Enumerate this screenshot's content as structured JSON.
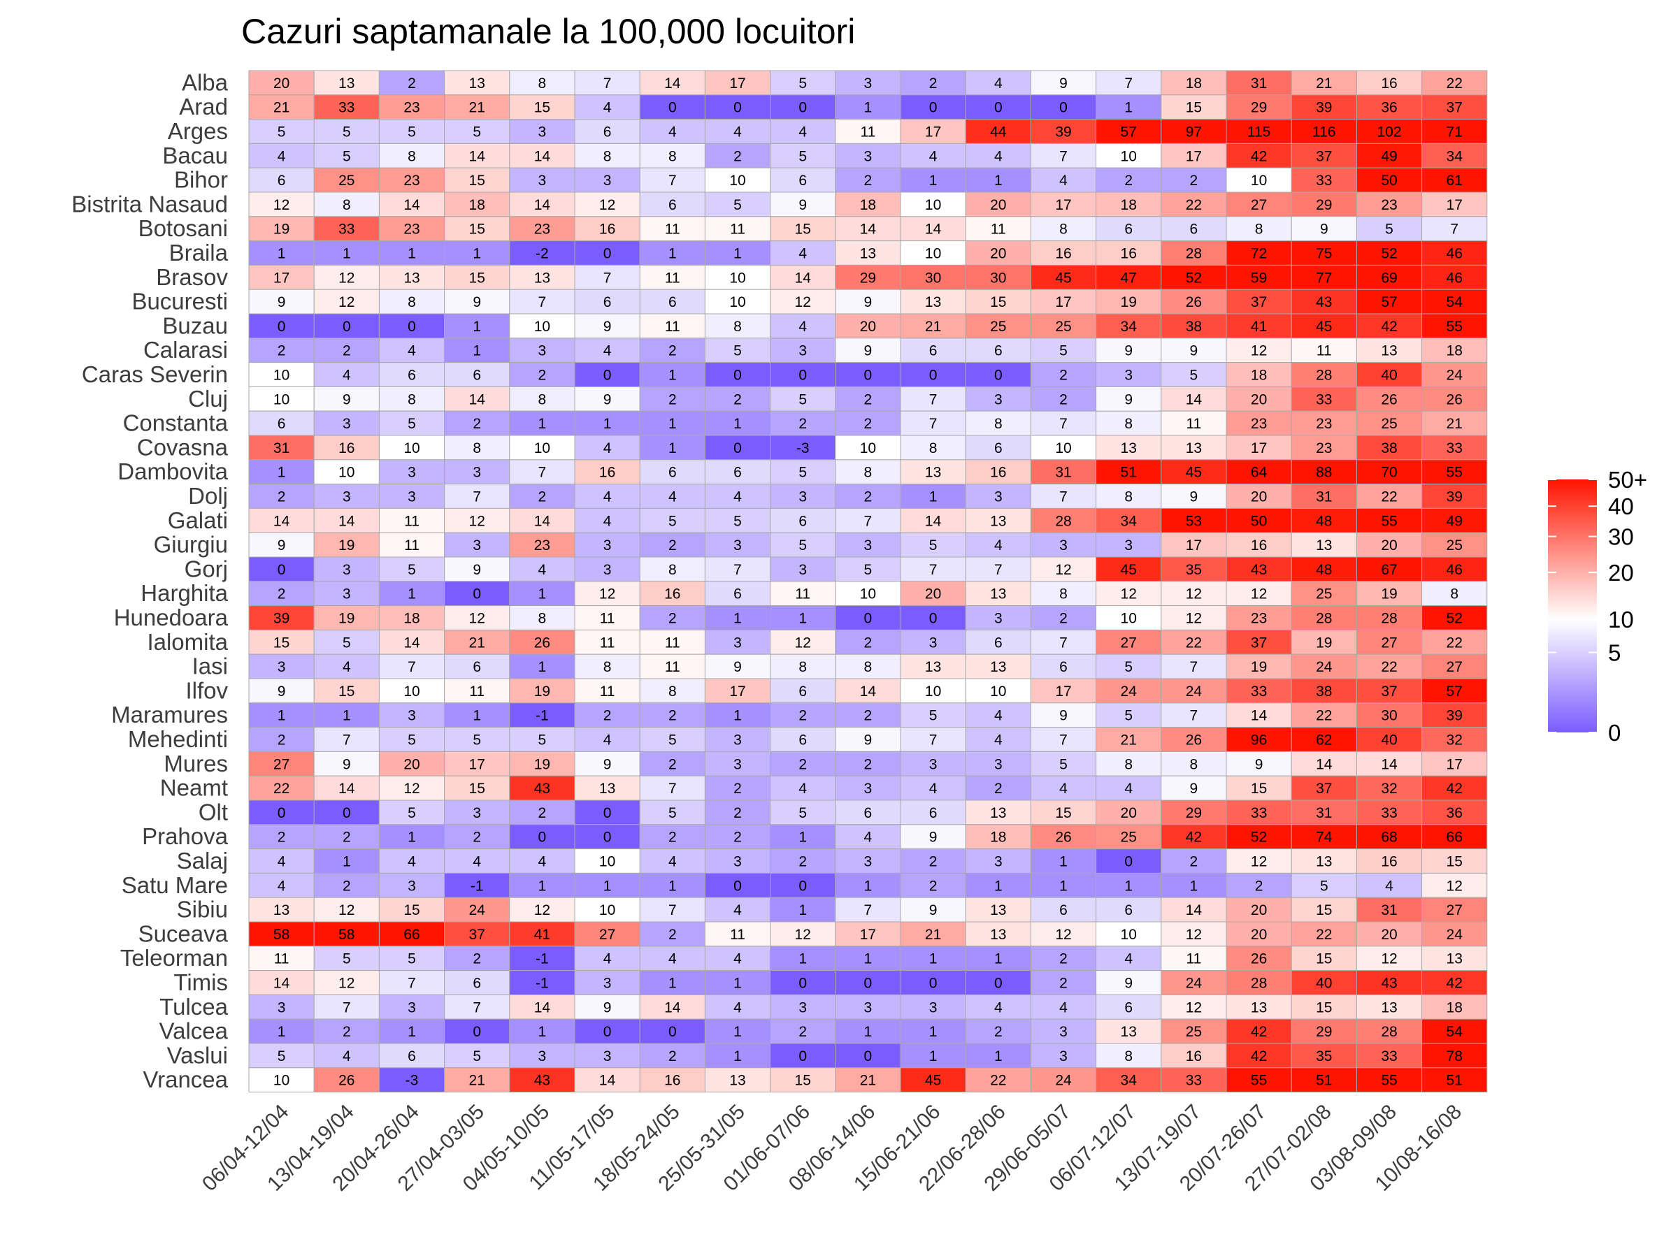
{
  "chart_data": {
    "type": "heatmap",
    "title": "Cazuri saptamanale la 100,000 locuitori",
    "xlabel": "",
    "ylabel": "",
    "columns": [
      "06/04-12/04",
      "13/04-19/04",
      "20/04-26/04",
      "27/04-03/05",
      "04/05-10/05",
      "11/05-17/05",
      "18/05-24/05",
      "25/05-31/05",
      "01/06-07/06",
      "08/06-14/06",
      "15/06-21/06",
      "22/06-28/06",
      "29/06-05/07",
      "06/07-12/07",
      "13/07-19/07",
      "20/07-26/07",
      "27/07-02/08",
      "03/08-09/08",
      "10/08-16/08"
    ],
    "rows": [
      "Alba",
      "Arad",
      "Arges",
      "Bacau",
      "Bihor",
      "Bistrita Nasaud",
      "Botosani",
      "Braila",
      "Brasov",
      "Bucuresti",
      "Buzau",
      "Calarasi",
      "Caras Severin",
      "Cluj",
      "Constanta",
      "Covasna",
      "Dambovita",
      "Dolj",
      "Galati",
      "Giurgiu",
      "Gorj",
      "Harghita",
      "Hunedoara",
      "Ialomita",
      "Iasi",
      "Ilfov",
      "Maramures",
      "Mehedinti",
      "Mures",
      "Neamt",
      "Olt",
      "Prahova",
      "Salaj",
      "Satu Mare",
      "Sibiu",
      "Suceava",
      "Teleorman",
      "Timis",
      "Tulcea",
      "Valcea",
      "Vaslui",
      "Vrancea"
    ],
    "values": [
      [
        20,
        13,
        2,
        13,
        8,
        7,
        14,
        17,
        5,
        3,
        2,
        4,
        9,
        7,
        18,
        31,
        21,
        16,
        22
      ],
      [
        21,
        33,
        23,
        21,
        15,
        4,
        0,
        0,
        0,
        1,
        0,
        0,
        0,
        1,
        15,
        29,
        39,
        36,
        37
      ],
      [
        5,
        5,
        5,
        5,
        3,
        6,
        4,
        4,
        4,
        11,
        17,
        44,
        39,
        57,
        97,
        115,
        116,
        102,
        71
      ],
      [
        4,
        5,
        8,
        14,
        14,
        8,
        8,
        2,
        5,
        3,
        4,
        4,
        7,
        10,
        17,
        42,
        37,
        49,
        34
      ],
      [
        6,
        25,
        23,
        15,
        3,
        3,
        7,
        10,
        6,
        2,
        1,
        1,
        4,
        2,
        2,
        10,
        33,
        50,
        61
      ],
      [
        12,
        8,
        14,
        18,
        14,
        12,
        6,
        5,
        9,
        18,
        10,
        20,
        17,
        18,
        22,
        27,
        29,
        23,
        17
      ],
      [
        19,
        33,
        23,
        15,
        23,
        16,
        11,
        11,
        15,
        14,
        14,
        11,
        8,
        6,
        6,
        8,
        9,
        5,
        7
      ],
      [
        1,
        1,
        1,
        1,
        -2,
        0,
        1,
        1,
        4,
        13,
        10,
        20,
        16,
        16,
        28,
        72,
        75,
        52,
        46
      ],
      [
        17,
        12,
        13,
        15,
        13,
        7,
        11,
        10,
        14,
        29,
        30,
        30,
        45,
        47,
        52,
        59,
        77,
        69,
        46
      ],
      [
        9,
        12,
        8,
        9,
        7,
        6,
        6,
        10,
        12,
        9,
        13,
        15,
        17,
        19,
        26,
        37,
        43,
        57,
        54
      ],
      [
        0,
        0,
        0,
        1,
        10,
        9,
        11,
        8,
        4,
        20,
        21,
        25,
        25,
        34,
        38,
        41,
        45,
        42,
        55
      ],
      [
        2,
        2,
        4,
        1,
        3,
        4,
        2,
        5,
        3,
        9,
        6,
        6,
        5,
        9,
        9,
        12,
        11,
        13,
        18
      ],
      [
        10,
        4,
        6,
        6,
        2,
        0,
        1,
        0,
        0,
        0,
        0,
        0,
        2,
        3,
        5,
        18,
        28,
        40,
        24
      ],
      [
        10,
        9,
        8,
        14,
        8,
        9,
        2,
        2,
        5,
        2,
        7,
        3,
        2,
        9,
        14,
        20,
        33,
        26,
        26
      ],
      [
        6,
        3,
        5,
        2,
        1,
        1,
        1,
        1,
        2,
        2,
        7,
        8,
        7,
        8,
        11,
        23,
        23,
        25,
        21
      ],
      [
        31,
        16,
        10,
        8,
        10,
        4,
        1,
        0,
        -3,
        10,
        8,
        6,
        10,
        13,
        13,
        17,
        23,
        38,
        33
      ],
      [
        1,
        10,
        3,
        3,
        7,
        16,
        6,
        6,
        5,
        8,
        13,
        16,
        31,
        51,
        45,
        64,
        88,
        70,
        55
      ],
      [
        2,
        3,
        3,
        7,
        2,
        4,
        4,
        4,
        3,
        2,
        1,
        3,
        7,
        8,
        9,
        20,
        31,
        22,
        39
      ],
      [
        14,
        14,
        11,
        12,
        14,
        4,
        5,
        5,
        6,
        7,
        14,
        13,
        28,
        34,
        53,
        50,
        48,
        55,
        49
      ],
      [
        9,
        19,
        11,
        3,
        23,
        3,
        2,
        3,
        5,
        3,
        5,
        4,
        3,
        3,
        17,
        16,
        13,
        20,
        25
      ],
      [
        0,
        3,
        5,
        9,
        4,
        3,
        8,
        7,
        3,
        5,
        7,
        7,
        12,
        45,
        35,
        43,
        48,
        67,
        46
      ],
      [
        2,
        3,
        1,
        0,
        1,
        12,
        16,
        6,
        11,
        10,
        20,
        13,
        8,
        12,
        12,
        12,
        25,
        19,
        8
      ],
      [
        39,
        19,
        18,
        12,
        8,
        11,
        2,
        1,
        1,
        0,
        0,
        3,
        2,
        10,
        12,
        23,
        28,
        28,
        52
      ],
      [
        15,
        5,
        14,
        21,
        26,
        11,
        11,
        3,
        12,
        2,
        3,
        6,
        7,
        27,
        22,
        37,
        19,
        27,
        22
      ],
      [
        3,
        4,
        7,
        6,
        1,
        8,
        11,
        9,
        8,
        8,
        13,
        13,
        6,
        5,
        7,
        19,
        24,
        22,
        27
      ],
      [
        9,
        15,
        10,
        11,
        19,
        11,
        8,
        17,
        6,
        14,
        10,
        10,
        17,
        24,
        24,
        33,
        38,
        37,
        57
      ],
      [
        1,
        1,
        3,
        1,
        -1,
        2,
        2,
        1,
        2,
        2,
        5,
        4,
        9,
        5,
        7,
        14,
        22,
        30,
        39
      ],
      [
        2,
        7,
        5,
        5,
        5,
        4,
        5,
        3,
        6,
        9,
        7,
        4,
        7,
        21,
        26,
        96,
        62,
        40,
        32
      ],
      [
        27,
        9,
        20,
        17,
        19,
        9,
        2,
        3,
        2,
        2,
        3,
        3,
        5,
        8,
        8,
        9,
        14,
        14,
        17
      ],
      [
        22,
        14,
        12,
        15,
        43,
        13,
        7,
        2,
        4,
        3,
        4,
        2,
        4,
        4,
        9,
        15,
        37,
        32,
        42
      ],
      [
        0,
        0,
        5,
        3,
        2,
        0,
        5,
        2,
        5,
        6,
        6,
        13,
        15,
        20,
        29,
        33,
        31,
        33,
        36
      ],
      [
        2,
        2,
        1,
        2,
        0,
        0,
        2,
        2,
        1,
        4,
        9,
        18,
        26,
        25,
        42,
        52,
        74,
        68,
        66
      ],
      [
        4,
        1,
        4,
        4,
        4,
        10,
        4,
        3,
        2,
        3,
        2,
        3,
        1,
        0,
        2,
        12,
        13,
        16,
        15
      ],
      [
        4,
        2,
        3,
        -1,
        1,
        1,
        1,
        0,
        0,
        1,
        2,
        1,
        1,
        1,
        1,
        2,
        5,
        4,
        12
      ],
      [
        13,
        12,
        15,
        24,
        12,
        10,
        7,
        4,
        1,
        7,
        9,
        13,
        6,
        6,
        14,
        20,
        15,
        31,
        27
      ],
      [
        58,
        58,
        66,
        37,
        41,
        27,
        2,
        11,
        12,
        17,
        21,
        13,
        12,
        10,
        12,
        20,
        22,
        20,
        24
      ],
      [
        11,
        5,
        5,
        2,
        -1,
        4,
        4,
        4,
        1,
        1,
        1,
        1,
        2,
        4,
        11,
        26,
        15,
        12,
        13
      ],
      [
        14,
        12,
        7,
        6,
        -1,
        3,
        1,
        1,
        0,
        0,
        0,
        0,
        2,
        9,
        24,
        28,
        40,
        43,
        42
      ],
      [
        3,
        7,
        3,
        7,
        14,
        9,
        14,
        4,
        3,
        3,
        3,
        4,
        4,
        6,
        12,
        13,
        15,
        13,
        18
      ],
      [
        1,
        2,
        1,
        0,
        1,
        0,
        0,
        1,
        2,
        1,
        1,
        2,
        3,
        13,
        25,
        42,
        29,
        28,
        54
      ],
      [
        5,
        4,
        6,
        5,
        3,
        3,
        2,
        1,
        0,
        0,
        1,
        1,
        3,
        8,
        16,
        42,
        35,
        33,
        78
      ],
      [
        10,
        26,
        -3,
        21,
        43,
        14,
        16,
        13,
        15,
        21,
        45,
        22,
        24,
        34,
        33,
        55,
        51,
        55,
        51
      ]
    ],
    "legend": {
      "position": "right",
      "labels": [
        "50+",
        "40",
        "30",
        "20",
        "10",
        "5",
        "0"
      ],
      "label_values": [
        50,
        40,
        30,
        20,
        10,
        5,
        0
      ],
      "scale": "sqrt",
      "range": [
        0,
        50
      ],
      "colors": {
        "low": "#7b5cff",
        "mid": "#ffffff",
        "high": "#ff1400"
      },
      "midpoint": 10
    },
    "grid": false
  }
}
